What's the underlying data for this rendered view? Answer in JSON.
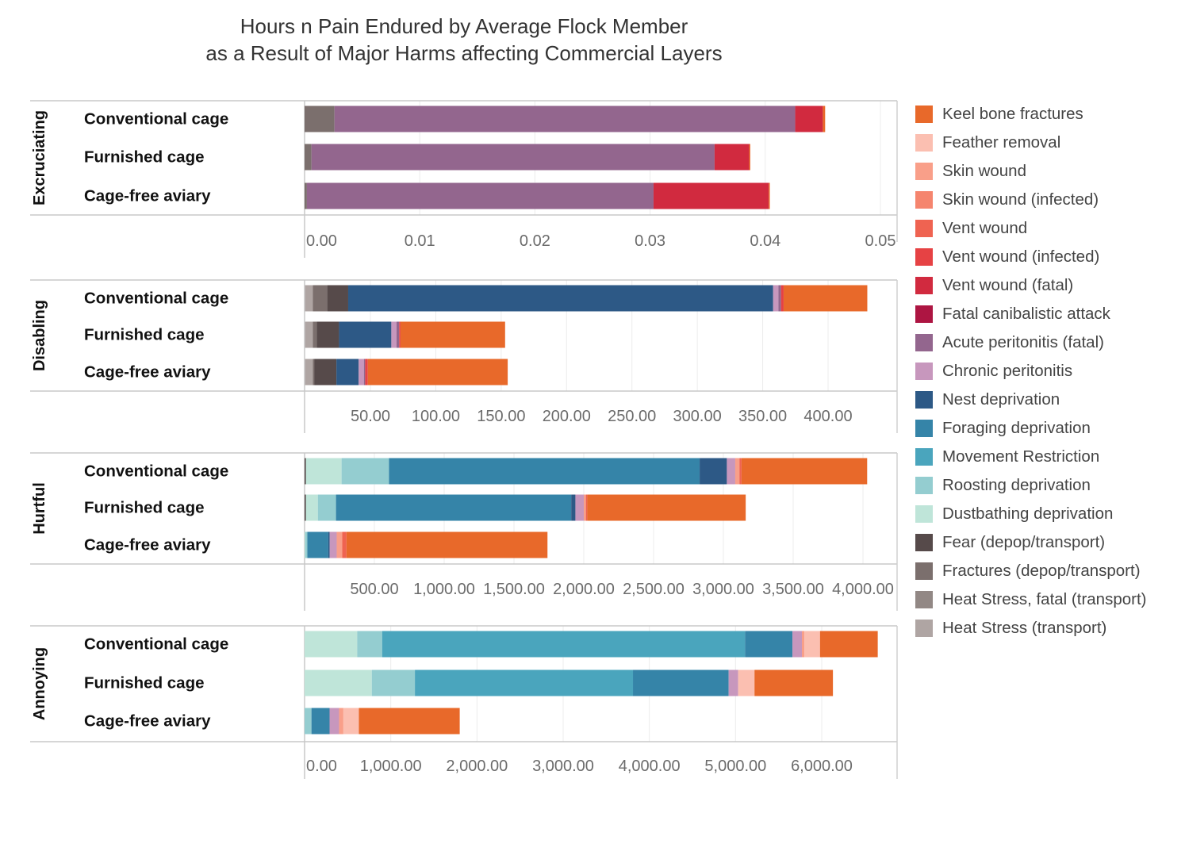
{
  "title": {
    "line1": "Hours n Pain Endured by Average Flock Member",
    "line2": "as a Result of Major Harms affecting Commercial Layers"
  },
  "legend": [
    {
      "name": "Keel bone fractures",
      "color": "#E8692A"
    },
    {
      "name": "Feather removal",
      "color": "#FBBFB1"
    },
    {
      "name": "Skin wound",
      "color": "#F99F89"
    },
    {
      "name": "Skin wound (infected)",
      "color": "#F5856E"
    },
    {
      "name": "Vent wound",
      "color": "#EF6351"
    },
    {
      "name": "Vent wound (infected)",
      "color": "#E64244"
    },
    {
      "name": "Vent wound (fatal)",
      "color": "#D12A3F"
    },
    {
      "name": "Fatal canibalistic attack",
      "color": "#AD1542"
    },
    {
      "name": "Acute peritonitis (fatal)",
      "color": "#93668E"
    },
    {
      "name": "Chronic peritonitis",
      "color": "#C797BD"
    },
    {
      "name": "Nest deprivation",
      "color": "#2D5986"
    },
    {
      "name": "Foraging deprivation",
      "color": "#3584A8"
    },
    {
      "name": "Movement Restriction",
      "color": "#4AA5BD"
    },
    {
      "name": "Roosting deprivation",
      "color": "#94CDD0"
    },
    {
      "name": "Dustbathing deprivation",
      "color": "#BFE5D9"
    },
    {
      "name": "Fear (depop/transport)",
      "color": "#564A4A"
    },
    {
      "name": "Fractures (depop/transport)",
      "color": "#7B6F6D"
    },
    {
      "name": "Heat Stress, fatal (transport)",
      "color": "#928885"
    },
    {
      "name": "Heat Stress (transport)",
      "color": "#AFA5A3"
    }
  ],
  "chart_data": {
    "type": "bar",
    "orientation": "horizontal",
    "stacked": true,
    "categories": [
      "Conventional cage",
      "Furnished cage",
      "Cage-free aviary"
    ],
    "legend_position": "right",
    "grid": true,
    "panels": [
      {
        "label": "Excruciating",
        "xlim": [
          0,
          0.05
        ],
        "ticks": [
          0,
          0.01,
          0.02,
          0.03,
          0.04,
          0.05
        ],
        "tick_labels": [
          "0.00",
          "0.01",
          "0.02",
          "0.03",
          "0.04",
          "0.05"
        ],
        "bars": [
          [
            {
              "s": "Fractures (depop/transport)",
              "v": 0.0026
            },
            {
              "s": "Acute peritonitis (fatal)",
              "v": 0.04
            },
            {
              "s": "Vent wound (fatal)",
              "v": 0.0024
            },
            {
              "s": "Keel bone fractures",
              "v": 0.0002
            }
          ],
          [
            {
              "s": "Fractures (depop/transport)",
              "v": 0.0006
            },
            {
              "s": "Acute peritonitis (fatal)",
              "v": 0.035
            },
            {
              "s": "Vent wound (fatal)",
              "v": 0.003
            },
            {
              "s": "Keel bone fractures",
              "v": 0.0001
            }
          ],
          [
            {
              "s": "Fractures (depop/transport)",
              "v": 0.0002
            },
            {
              "s": "Acute peritonitis (fatal)",
              "v": 0.0301
            },
            {
              "s": "Vent wound (fatal)",
              "v": 0.01
            },
            {
              "s": "Keel bone fractures",
              "v": 0.0001
            }
          ]
        ]
      },
      {
        "label": "Disabling",
        "xlim": [
          0,
          450
        ],
        "ticks": [
          50,
          100,
          150,
          200,
          250,
          300,
          350,
          400
        ],
        "tick_labels": [
          "50.00",
          "100.00",
          "150.00",
          "200.00",
          "250.00",
          "300.00",
          "350.00",
          "400.00"
        ],
        "bars": [
          [
            {
              "s": "Heat Stress (transport)",
              "v": 6
            },
            {
              "s": "Fractures (depop/transport)",
              "v": 11
            },
            {
              "s": "Fear (depop/transport)",
              "v": 16
            },
            {
              "s": "Nest deprivation",
              "v": 325
            },
            {
              "s": "Chronic peritonitis",
              "v": 4
            },
            {
              "s": "Acute peritonitis (fatal)",
              "v": 2
            },
            {
              "s": "Vent wound (infected)",
              "v": 2
            },
            {
              "s": "Keel bone fractures",
              "v": 64
            }
          ],
          [
            {
              "s": "Heat Stress (transport)",
              "v": 6
            },
            {
              "s": "Fractures (depop/transport)",
              "v": 3
            },
            {
              "s": "Fear (depop/transport)",
              "v": 17
            },
            {
              "s": "Nest deprivation",
              "v": 40
            },
            {
              "s": "Chronic peritonitis",
              "v": 4
            },
            {
              "s": "Acute peritonitis (fatal)",
              "v": 2
            },
            {
              "s": "Vent wound (infected)",
              "v": 1
            },
            {
              "s": "Keel bone fractures",
              "v": 80
            }
          ],
          [
            {
              "s": "Heat Stress (transport)",
              "v": 6
            },
            {
              "s": "Fractures (depop/transport)",
              "v": 1
            },
            {
              "s": "Fear (depop/transport)",
              "v": 17
            },
            {
              "s": "Nest deprivation",
              "v": 17
            },
            {
              "s": "Chronic peritonitis",
              "v": 4
            },
            {
              "s": "Acute peritonitis (fatal)",
              "v": 1
            },
            {
              "s": "Vent wound (infected)",
              "v": 2
            },
            {
              "s": "Keel bone fractures",
              "v": 107
            }
          ]
        ]
      },
      {
        "label": "Hurtful",
        "xlim": [
          0,
          4250
        ],
        "ticks": [
          500,
          1000,
          1500,
          2000,
          2500,
          3000,
          3500,
          4000
        ],
        "tick_labels": [
          "500.00",
          "1,000.00",
          "1,500.00",
          "2,000.00",
          "2,500.00",
          "3,000.00",
          "3,500.00",
          "4,000.00"
        ],
        "bars": [
          [
            {
              "s": "Fear (depop/transport)",
              "v": 10
            },
            {
              "s": "Dustbathing deprivation",
              "v": 255
            },
            {
              "s": "Roosting deprivation",
              "v": 340
            },
            {
              "s": "Foraging deprivation",
              "v": 2225
            },
            {
              "s": "Nest deprivation",
              "v": 195
            },
            {
              "s": "Chronic peritonitis",
              "v": 60
            },
            {
              "s": "Skin wound",
              "v": 30
            },
            {
              "s": "Vent wound",
              "v": 15
            },
            {
              "s": "Keel bone fractures",
              "v": 900
            }
          ],
          [
            {
              "s": "Fear (depop/transport)",
              "v": 10
            },
            {
              "s": "Dustbathing deprivation",
              "v": 85
            },
            {
              "s": "Roosting deprivation",
              "v": 130
            },
            {
              "s": "Foraging deprivation",
              "v": 1685
            },
            {
              "s": "Nest deprivation",
              "v": 30
            },
            {
              "s": "Chronic peritonitis",
              "v": 60
            },
            {
              "s": "Skin wound",
              "v": 15
            },
            {
              "s": "Vent wound",
              "v": 10
            },
            {
              "s": "Keel bone fractures",
              "v": 1135
            }
          ],
          [
            {
              "s": "Dustbathing deprivation",
              "v": 5
            },
            {
              "s": "Roosting deprivation",
              "v": 15
            },
            {
              "s": "Foraging deprivation",
              "v": 150
            },
            {
              "s": "Nest deprivation",
              "v": 10
            },
            {
              "s": "Chronic peritonitis",
              "v": 50
            },
            {
              "s": "Skin wound",
              "v": 40
            },
            {
              "s": "Vent wound",
              "v": 30
            },
            {
              "s": "Keel bone fractures",
              "v": 1440
            }
          ]
        ]
      },
      {
        "label": "Annoying",
        "xlim": [
          0,
          7000
        ],
        "ticks": [
          0,
          1000,
          2000,
          3000,
          4000,
          5000,
          6000
        ],
        "tick_labels": [
          "0.00",
          "1,000.00",
          "2,000.00",
          "3,000.00",
          "4,000.00",
          "5,000.00",
          "6,000.00"
        ],
        "bars": [
          [
            {
              "s": "Dustbathing deprivation",
              "v": 610
            },
            {
              "s": "Roosting deprivation",
              "v": 290
            },
            {
              "s": "Movement Restriction",
              "v": 4210
            },
            {
              "s": "Foraging deprivation",
              "v": 550
            },
            {
              "s": "Chronic peritonitis",
              "v": 110
            },
            {
              "s": "Skin wound",
              "v": 30
            },
            {
              "s": "Feather removal",
              "v": 180
            },
            {
              "s": "Keel bone fractures",
              "v": 670
            }
          ],
          [
            {
              "s": "Dustbathing deprivation",
              "v": 780
            },
            {
              "s": "Roosting deprivation",
              "v": 500
            },
            {
              "s": "Movement Restriction",
              "v": 2530
            },
            {
              "s": "Foraging deprivation",
              "v": 1110
            },
            {
              "s": "Chronic peritonitis",
              "v": 110
            },
            {
              "s": "Feather removal",
              "v": 190
            },
            {
              "s": "Keel bone fractures",
              "v": 910
            }
          ],
          [
            {
              "s": "Roosting deprivation",
              "v": 80
            },
            {
              "s": "Foraging deprivation",
              "v": 210
            },
            {
              "s": "Chronic peritonitis",
              "v": 110
            },
            {
              "s": "Skin wound",
              "v": 50
            },
            {
              "s": "Feather removal",
              "v": 180
            },
            {
              "s": "Keel bone fractures",
              "v": 1170
            }
          ]
        ]
      }
    ]
  }
}
